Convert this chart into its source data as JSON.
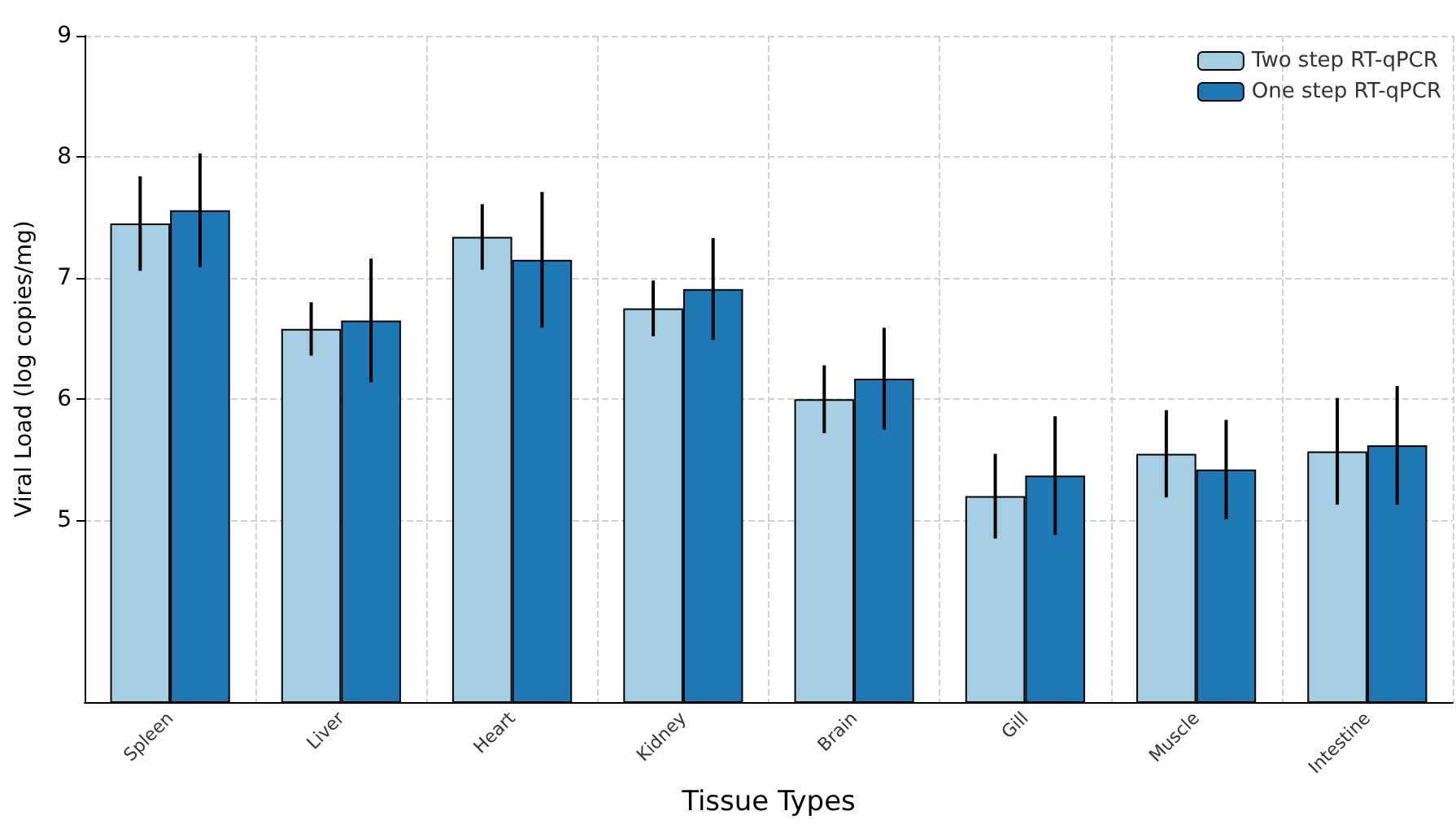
{
  "chart_data": {
    "type": "bar",
    "xlabel": "Tissue Types",
    "ylabel": "Viral Load (log copies/mg)",
    "categories": [
      "Spleen",
      "Liver",
      "Heart",
      "Kidney",
      "Brain",
      "Gill",
      "Muscle",
      "Intestine"
    ],
    "series": [
      {
        "name": "Two step RT-qPCR",
        "color": "#a6cee3",
        "values": [
          7.45,
          6.58,
          7.34,
          6.75,
          6.0,
          5.2,
          5.55,
          5.57
        ],
        "errors": [
          0.39,
          0.22,
          0.27,
          0.23,
          0.28,
          0.35,
          0.36,
          0.44
        ]
      },
      {
        "name": "One step RT-qPCR",
        "color": "#1f78b4",
        "values": [
          7.56,
          6.65,
          7.15,
          6.91,
          6.17,
          5.37,
          5.42,
          5.62
        ],
        "errors": [
          0.47,
          0.51,
          0.56,
          0.42,
          0.42,
          0.49,
          0.41,
          0.49
        ]
      }
    ],
    "ylim": [
      3.5,
      9
    ],
    "yticks": [
      5,
      6,
      7,
      8,
      9
    ],
    "grid": true,
    "legend": "top right"
  }
}
